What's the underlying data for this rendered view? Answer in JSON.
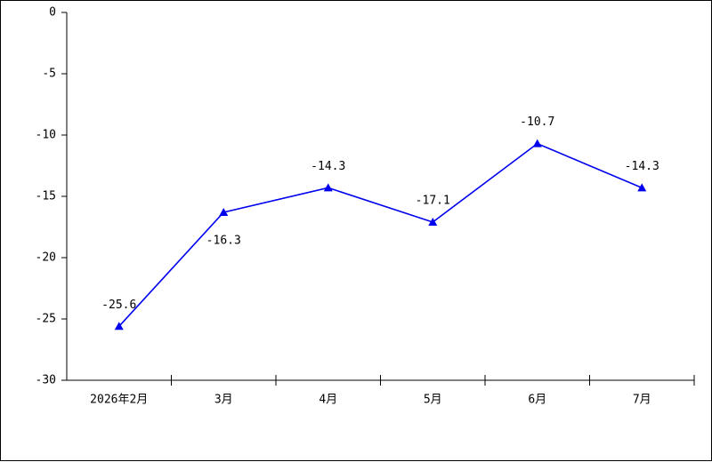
{
  "chart_data": {
    "type": "line",
    "categories": [
      "2026年2月",
      "3月",
      "4月",
      "5月",
      "6月",
      "7月"
    ],
    "series": [
      {
        "name": "value",
        "color": "#0000ee",
        "values": [
          -25.6,
          -16.3,
          -14.3,
          -17.1,
          -10.7,
          -14.3
        ]
      }
    ],
    "ylim": [
      -30,
      0
    ],
    "yticks": [
      -30,
      -25,
      -20,
      -15,
      -10,
      -5,
      0
    ],
    "grid": false
  }
}
